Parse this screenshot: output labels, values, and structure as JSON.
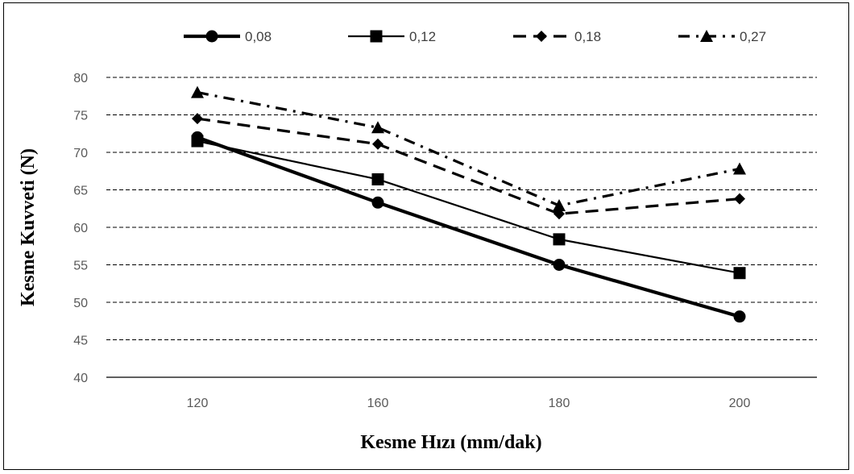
{
  "chart_data": {
    "type": "line",
    "categories": [
      "120",
      "160",
      "180",
      "200"
    ],
    "series": [
      {
        "name": "0,08",
        "values": [
          72.0,
          63.3,
          55.0,
          48.1
        ],
        "marker": "circle",
        "dash": "solid-thick",
        "color": "#000000"
      },
      {
        "name": "0,12",
        "values": [
          71.5,
          66.4,
          58.4,
          53.9
        ],
        "marker": "square",
        "dash": "solid",
        "color": "#000000"
      },
      {
        "name": "0,18",
        "values": [
          74.5,
          71.1,
          61.8,
          63.8
        ],
        "marker": "diamond",
        "dash": "dash",
        "color": "#000000"
      },
      {
        "name": "0,27",
        "values": [
          78.0,
          73.3,
          62.9,
          67.8
        ],
        "marker": "triangle",
        "dash": "dashdot",
        "color": "#000000"
      }
    ],
    "xlabel": "Kesme Hızı  (mm/dak)",
    "ylabel": "Kesme Kuvveti (N)",
    "ylim": [
      40,
      80
    ],
    "yticks": [
      "40",
      "45",
      "50",
      "55",
      "60",
      "65",
      "70",
      "75",
      "80"
    ],
    "grid": true,
    "legend_position": "top"
  }
}
